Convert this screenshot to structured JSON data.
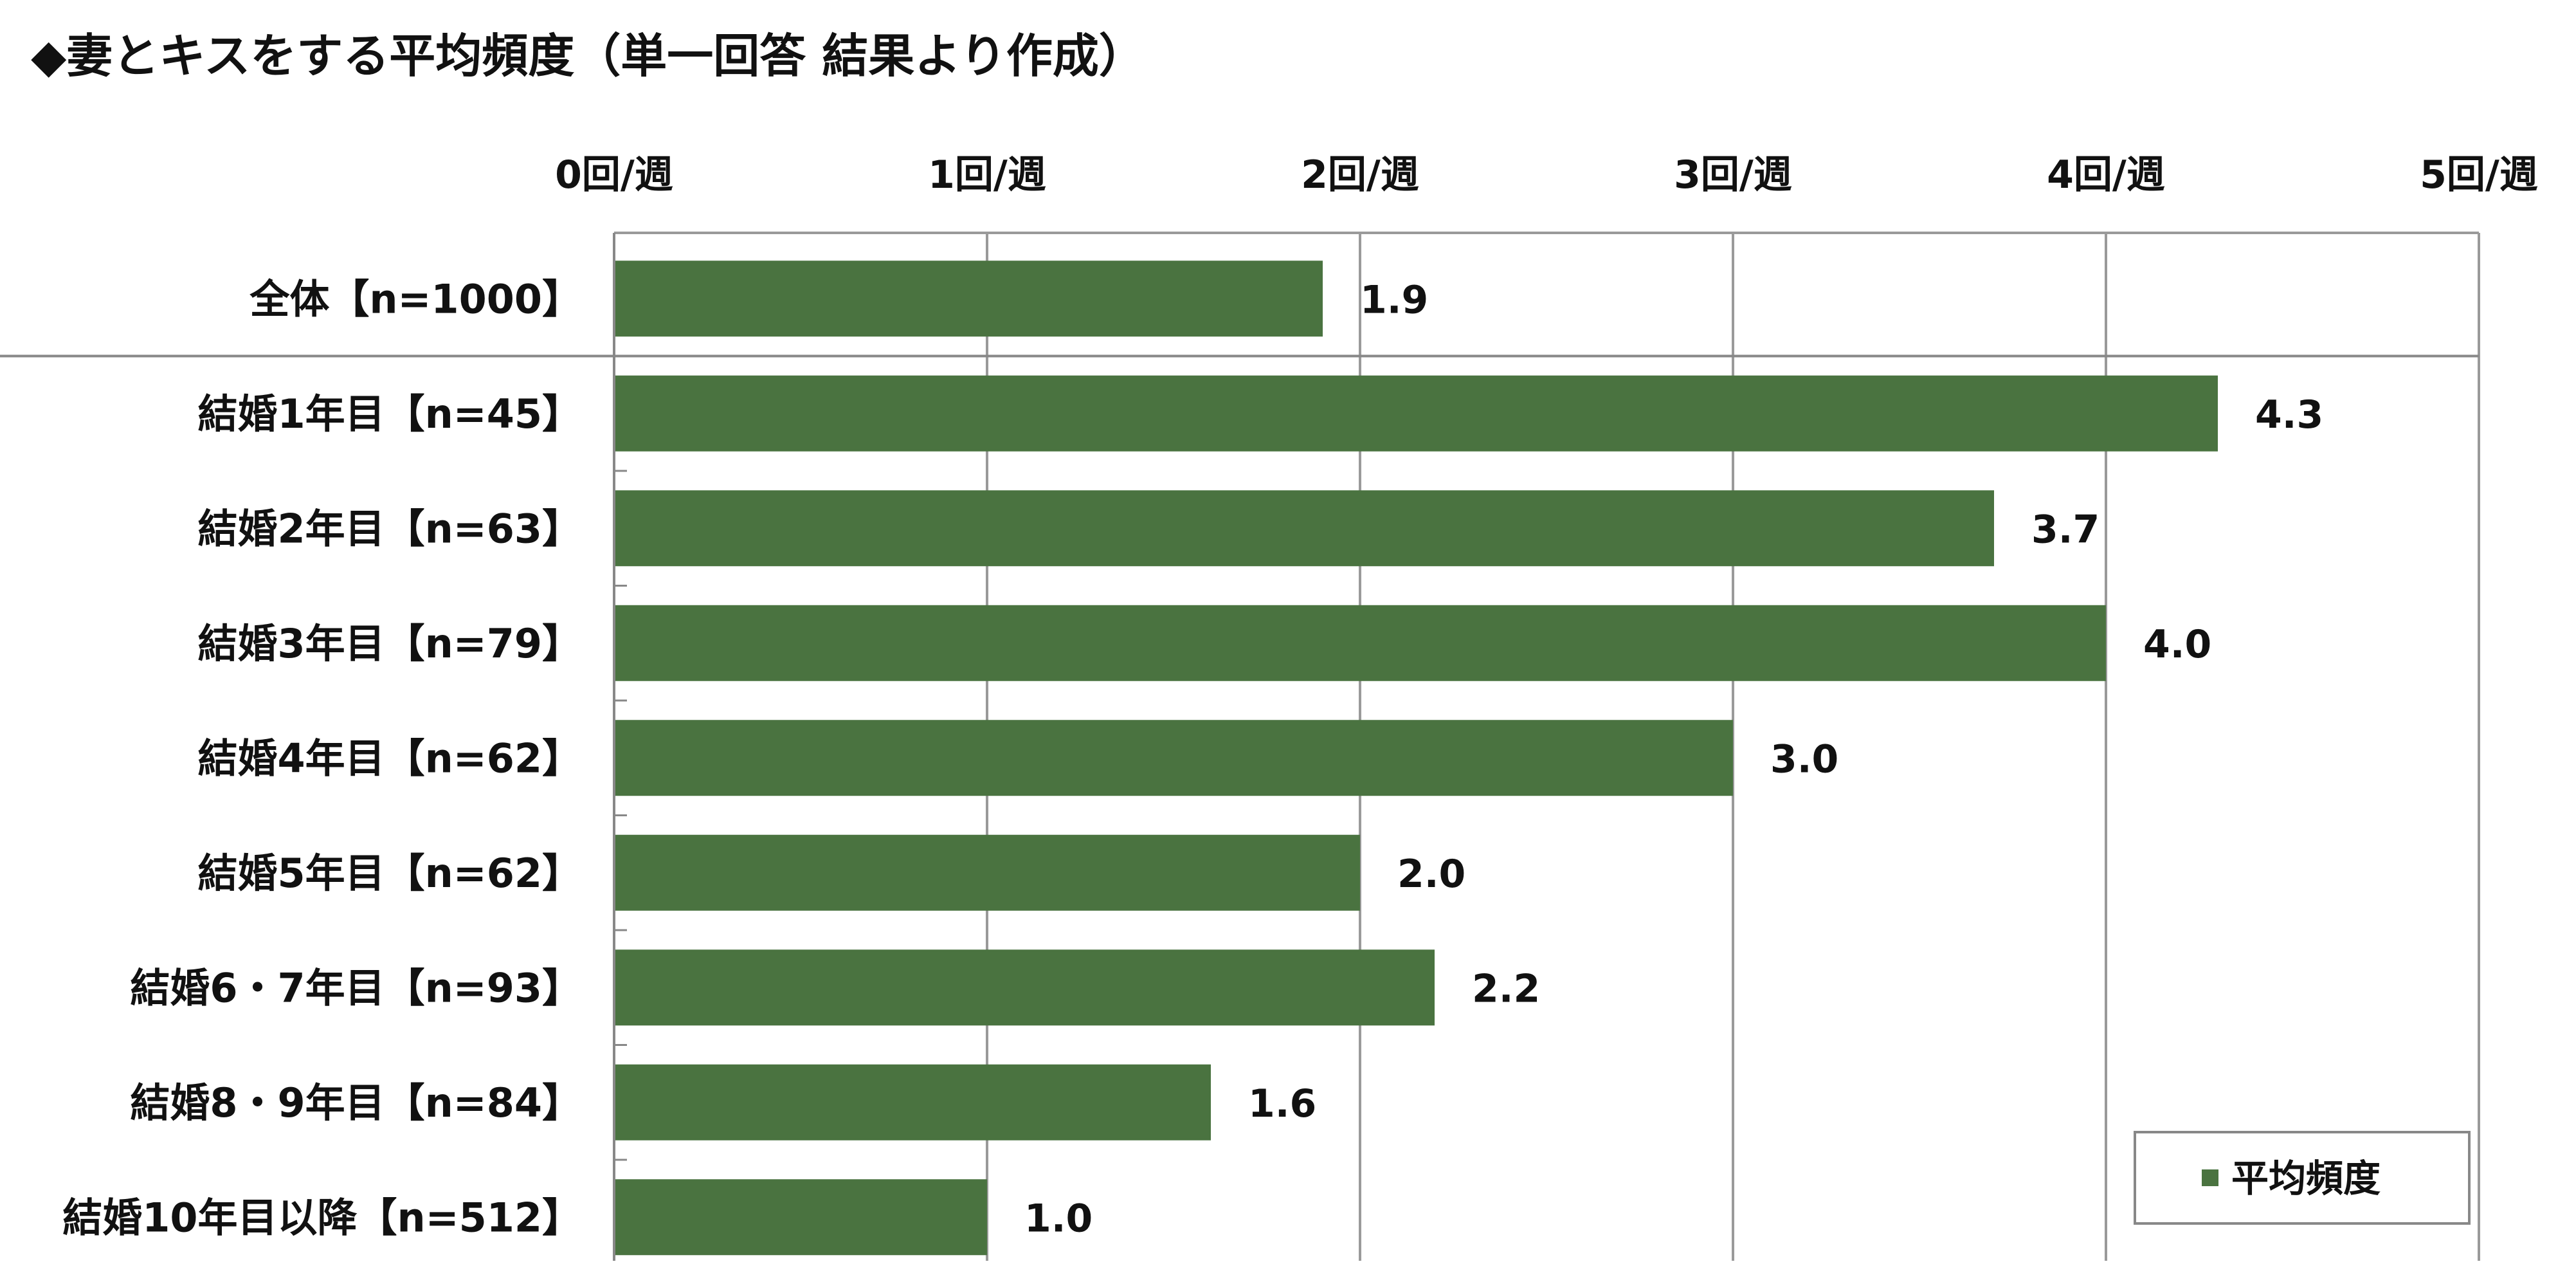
{
  "chart_data": {
    "type": "bar",
    "orientation": "horizontal",
    "title": "◆妻とキスをする平均頻度（単一回答 結果より作成）",
    "xlabel": "",
    "ylabel": "",
    "xlim": [
      0,
      5
    ],
    "x_ticks": [
      0,
      1,
      2,
      3,
      4,
      5
    ],
    "x_tick_labels": [
      "0回/週",
      "1回/週",
      "2回/週",
      "3回/週",
      "4回/週",
      "5回/週"
    ],
    "x_axis_position": "top",
    "grid": true,
    "categories": [
      "全体【n=1000】",
      "結婚1年目【n=45】",
      "結婚2年目【n=63】",
      "結婚3年目【n=79】",
      "結婚4年目【n=62】",
      "結婚5年目【n=62】",
      "結婚6・7年目【n=93】",
      "結婚8・9年目【n=84】",
      "結婚10年目以降【n=512】"
    ],
    "series": [
      {
        "name": "平均頻度",
        "color": "#4a7340",
        "values": [
          1.9,
          4.3,
          3.7,
          4.0,
          3.0,
          2.0,
          2.2,
          1.6,
          1.0
        ],
        "value_labels": [
          "1.9",
          "4.3",
          "3.7",
          "4.0",
          "3.0",
          "2.0",
          "2.2",
          "1.6",
          "1.0"
        ]
      }
    ],
    "separator_after_category_index": 0,
    "legend_position": "bottom-right"
  }
}
